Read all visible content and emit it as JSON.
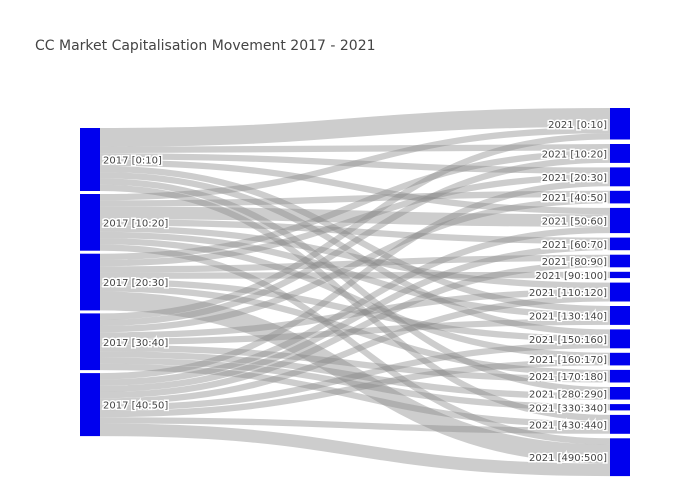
{
  "title": "CC Market Capitalisation Movement 2017 - 2021",
  "colors": {
    "node": "#0000ee",
    "link": "#888888"
  },
  "chart_data": {
    "type": "sankey",
    "sources": [
      "2017 [0:10]",
      "2017 [10:20]",
      "2017 [20:30]",
      "2017 [30:40]",
      "2017 [40:50]"
    ],
    "targets": [
      "2021 [0:10]",
      "2021 [10:20]",
      "2021 [20:30]",
      "2021 [40:50]",
      "2021 [50:60]",
      "2021 [60:70]",
      "2021 [80:90]",
      "2021 [90:100]",
      "2021 [110:120]",
      "2021 [130:140]",
      "2021 [150:160]",
      "2021 [160:170]",
      "2021 [170:180]",
      "2021 [280:290]",
      "2021 [330:340]",
      "2021 [430:440]",
      "2021 [490:500]"
    ],
    "links": [
      {
        "source": "2017 [0:10]",
        "target": "2021 [0:10]",
        "value": 3
      },
      {
        "source": "2017 [0:10]",
        "target": "2021 [10:20]",
        "value": 1
      },
      {
        "source": "2017 [0:10]",
        "target": "2021 [20:30]",
        "value": 1
      },
      {
        "source": "2017 [0:10]",
        "target": "2021 [50:60]",
        "value": 1
      },
      {
        "source": "2017 [0:10]",
        "target": "2021 [130:140]",
        "value": 1
      },
      {
        "source": "2017 [0:10]",
        "target": "2021 [150:160]",
        "value": 1
      },
      {
        "source": "2017 [0:10]",
        "target": "2021 [280:290]",
        "value": 1
      },
      {
        "source": "2017 [0:10]",
        "target": "2021 [430:440]",
        "value": 1
      },
      {
        "source": "2017 [10:20]",
        "target": "2021 [0:10]",
        "value": 1
      },
      {
        "source": "2017 [10:20]",
        "target": "2021 [40:50]",
        "value": 1
      },
      {
        "source": "2017 [10:20]",
        "target": "2021 [50:60]",
        "value": 2
      },
      {
        "source": "2017 [10:20]",
        "target": "2021 [60:70]",
        "value": 1
      },
      {
        "source": "2017 [10:20]",
        "target": "2021 [110:120]",
        "value": 1
      },
      {
        "source": "2017 [10:20]",
        "target": "2021 [130:140]",
        "value": 1
      },
      {
        "source": "2017 [10:20]",
        "target": "2021 [160:170]",
        "value": 1
      },
      {
        "source": "2017 [10:20]",
        "target": "2021 [490:500]",
        "value": 1
      },
      {
        "source": "2017 [20:30]",
        "target": "2021 [10:20]",
        "value": 1
      },
      {
        "source": "2017 [20:30]",
        "target": "2021 [20:30]",
        "value": 1
      },
      {
        "source": "2017 [20:30]",
        "target": "2021 [80:90]",
        "value": 1
      },
      {
        "source": "2017 [20:30]",
        "target": "2021 [90:100]",
        "value": 1
      },
      {
        "source": "2017 [20:30]",
        "target": "2021 [150:160]",
        "value": 1
      },
      {
        "source": "2017 [20:30]",
        "target": "2021 [170:180]",
        "value": 1
      },
      {
        "source": "2017 [20:30]",
        "target": "2021 [490:500]",
        "value": 3
      },
      {
        "source": "2017 [30:40]",
        "target": "2021 [0:10]",
        "value": 1
      },
      {
        "source": "2017 [30:40]",
        "target": "2021 [10:20]",
        "value": 1
      },
      {
        "source": "2017 [30:40]",
        "target": "2021 [40:50]",
        "value": 1
      },
      {
        "source": "2017 [30:40]",
        "target": "2021 [110:120]",
        "value": 1
      },
      {
        "source": "2017 [30:40]",
        "target": "2021 [130:140]",
        "value": 1
      },
      {
        "source": "2017 [30:40]",
        "target": "2021 [170:180]",
        "value": 1
      },
      {
        "source": "2017 [30:40]",
        "target": "2021 [280:290]",
        "value": 1
      },
      {
        "source": "2017 [30:40]",
        "target": "2021 [330:340]",
        "value": 1
      },
      {
        "source": "2017 [30:40]",
        "target": "2021 [430:440]",
        "value": 1
      },
      {
        "source": "2017 [40:50]",
        "target": "2021 [20:30]",
        "value": 1
      },
      {
        "source": "2017 [40:50]",
        "target": "2021 [50:60]",
        "value": 1
      },
      {
        "source": "2017 [40:50]",
        "target": "2021 [60:70]",
        "value": 1
      },
      {
        "source": "2017 [40:50]",
        "target": "2021 [80:90]",
        "value": 1
      },
      {
        "source": "2017 [40:50]",
        "target": "2021 [110:120]",
        "value": 1
      },
      {
        "source": "2017 [40:50]",
        "target": "2021 [150:160]",
        "value": 1
      },
      {
        "source": "2017 [40:50]",
        "target": "2021 [160:170]",
        "value": 1
      },
      {
        "source": "2017 [40:50]",
        "target": "2021 [430:440]",
        "value": 1
      },
      {
        "source": "2017 [40:50]",
        "target": "2021 [490:500]",
        "value": 2
      }
    ]
  }
}
